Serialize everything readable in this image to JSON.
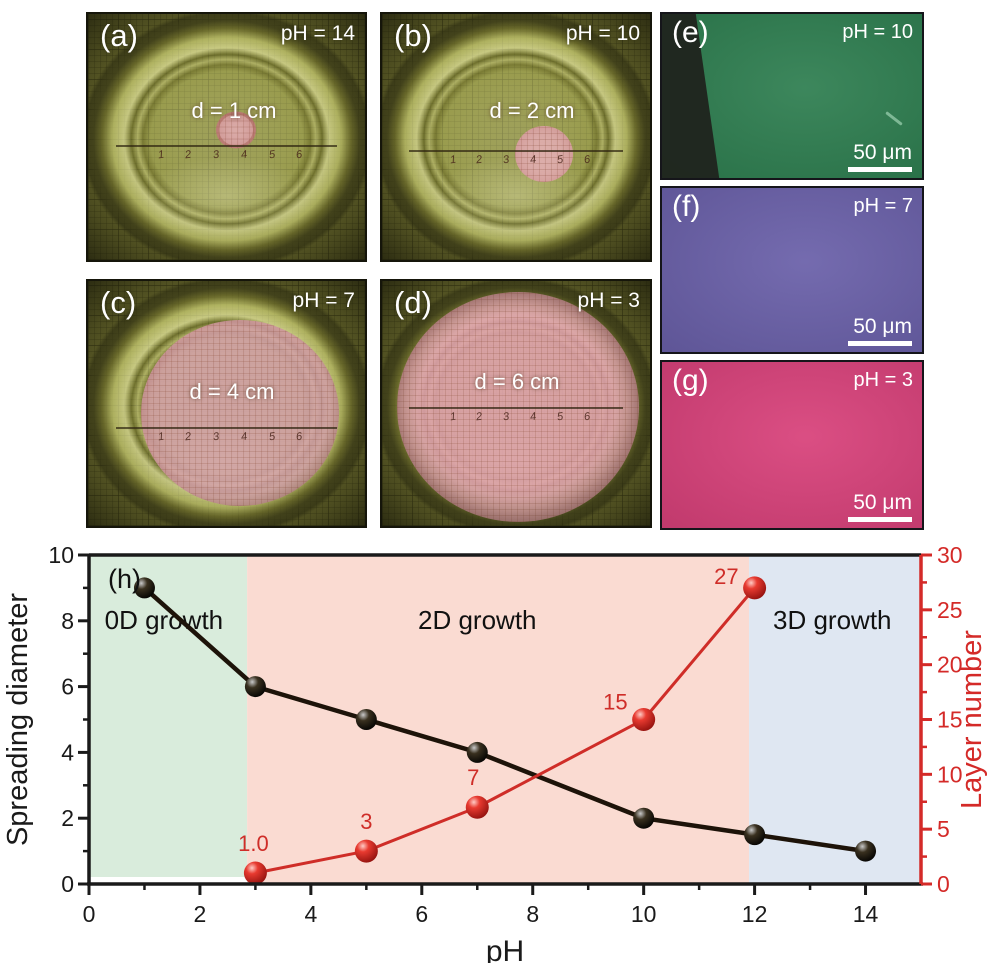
{
  "photos": {
    "ruler_digits": [
      "1",
      "2",
      "3",
      "4",
      "5",
      "6"
    ],
    "items": [
      {
        "label": "(a)",
        "ph": "pH = 14",
        "d": "d = 1 cm"
      },
      {
        "label": "(b)",
        "ph": "pH = 10",
        "d": "d = 2 cm"
      },
      {
        "label": "(c)",
        "ph": "pH = 7",
        "d": "d = 4 cm"
      },
      {
        "label": "(d)",
        "ph": "pH = 3",
        "d": "d = 6 cm"
      }
    ]
  },
  "micrographs": {
    "items": [
      {
        "label": "(e)",
        "ph": "pH = 10",
        "scale": "50 μm",
        "color": "#2e7e50"
      },
      {
        "label": "(f)",
        "ph": "pH = 7",
        "scale": "50 μm",
        "color": "#6a60a9"
      },
      {
        "label": "(g)",
        "ph": "pH = 3",
        "scale": "50 μm",
        "color": "#d8417a"
      }
    ]
  },
  "chart_data": {
    "type": "line",
    "panel_label": "(h)",
    "xlabel": "pH",
    "xlim": [
      0,
      15
    ],
    "x_major_ticks": [
      0,
      2,
      4,
      6,
      8,
      10,
      12,
      14
    ],
    "x_minor_ticks": [
      1,
      3,
      5,
      7,
      9,
      11,
      13
    ],
    "grid": false,
    "left_axis": {
      "label": "Spreading diameter",
      "lim": [
        0,
        10
      ],
      "major_ticks": [
        0,
        2,
        4,
        6,
        8,
        10
      ],
      "minor_ticks": [
        1,
        3,
        5,
        7,
        9
      ],
      "color": "#1a1a1a"
    },
    "right_axis": {
      "label": "Layer number",
      "lim": [
        0,
        30
      ],
      "major_ticks": [
        0,
        5,
        10,
        15,
        20,
        25,
        30
      ],
      "minor_ticks": [
        2.5,
        7.5,
        12.5,
        17.5,
        22.5,
        27.5
      ],
      "color": "#d42a28"
    },
    "regions": [
      {
        "label": "0D growth",
        "x0": 0,
        "x1": 2.85,
        "color": "#d9ecdc",
        "label_x": 1.35,
        "label_y": 7.75,
        "bottom_gap": 7
      },
      {
        "label": "2D growth",
        "x0": 2.85,
        "x1": 11.9,
        "color": "#fadbd2",
        "label_x": 7.0,
        "label_y": 7.75,
        "bottom_gap": 0
      },
      {
        "label": "3D growth",
        "x0": 11.9,
        "x1": 15,
        "color": "#dfe7f2",
        "label_x": 13.4,
        "label_y": 7.75,
        "bottom_gap": 0
      }
    ],
    "series": [
      {
        "name": "Spreading diameter",
        "axis": "left",
        "color": "#1d1309",
        "line_width": 4.5,
        "marker_r": 10.5,
        "gradient": "gBlack",
        "x": [
          1,
          3,
          5,
          7,
          10,
          12,
          14
        ],
        "y": [
          9,
          6,
          5,
          4,
          2,
          1.5,
          1
        ]
      },
      {
        "name": "Layer number",
        "axis": "right",
        "color": "#cf2d28",
        "line_width": 3,
        "marker_r": 11.5,
        "gradient": "gRed",
        "x": [
          3,
          5,
          7,
          10,
          12
        ],
        "y": [
          1.0,
          3,
          7,
          15,
          27
        ],
        "point_labels": [
          "1.0",
          "3",
          "7",
          "15",
          "27"
        ],
        "label_offsets": [
          [
            -2,
            -22,
            "middle"
          ],
          [
            0,
            -22,
            "middle"
          ],
          [
            -4,
            -22,
            "middle"
          ],
          [
            -16,
            -10,
            "end"
          ],
          [
            -16,
            -4,
            "end"
          ]
        ]
      }
    ]
  }
}
